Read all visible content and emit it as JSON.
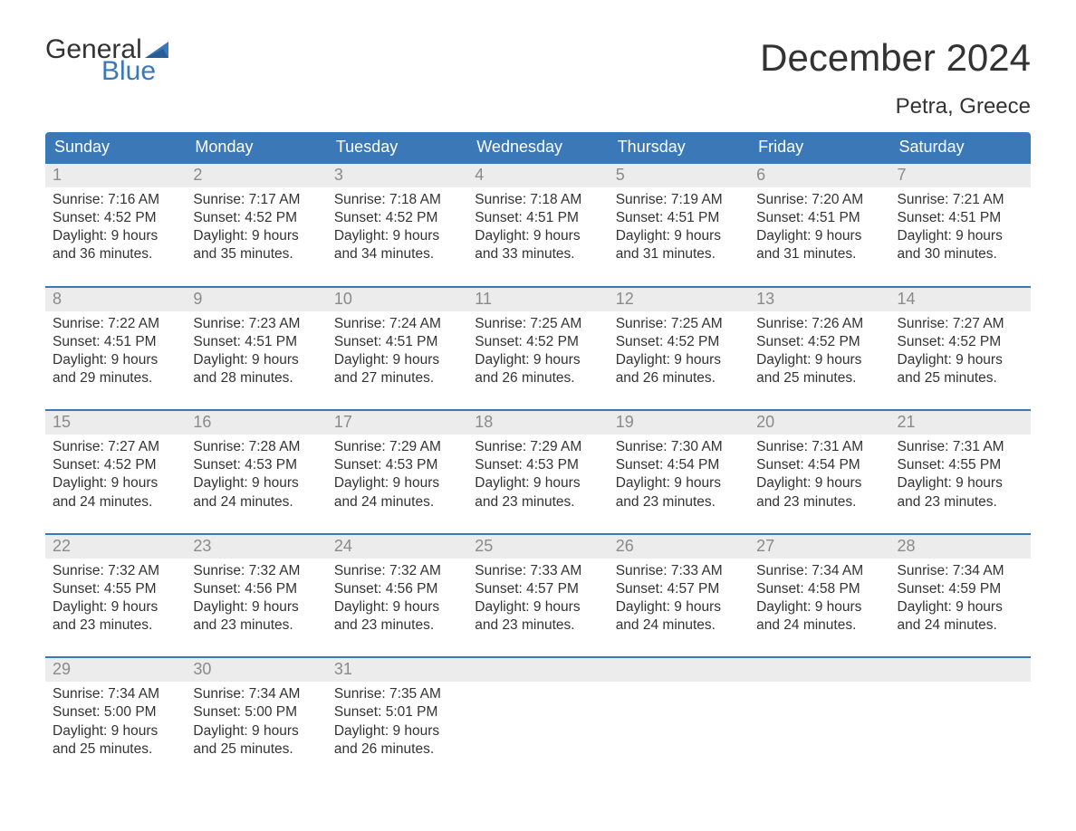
{
  "brand": {
    "word1": "General",
    "word2": "Blue",
    "flag_color": "#3b78b8"
  },
  "title": "December 2024",
  "subtitle": "Petra, Greece",
  "colors": {
    "header_bg": "#3b78b8",
    "header_text": "#ffffff",
    "week_border": "#3b78b8",
    "daynum_bg": "#ececec",
    "daynum_text": "#8a8a8a",
    "body_text": "#333333",
    "page_bg": "#ffffff"
  },
  "font": {
    "family": "Arial",
    "title_size": 42,
    "subtitle_size": 24,
    "weekday_size": 18,
    "daynum_size": 18,
    "body_size": 15.5
  },
  "weekdays": [
    "Sunday",
    "Monday",
    "Tuesday",
    "Wednesday",
    "Thursday",
    "Friday",
    "Saturday"
  ],
  "weeks": [
    [
      {
        "n": "1",
        "sunrise": "Sunrise: 7:16 AM",
        "sunset": "Sunset: 4:52 PM",
        "d1": "Daylight: 9 hours",
        "d2": "and 36 minutes."
      },
      {
        "n": "2",
        "sunrise": "Sunrise: 7:17 AM",
        "sunset": "Sunset: 4:52 PM",
        "d1": "Daylight: 9 hours",
        "d2": "and 35 minutes."
      },
      {
        "n": "3",
        "sunrise": "Sunrise: 7:18 AM",
        "sunset": "Sunset: 4:52 PM",
        "d1": "Daylight: 9 hours",
        "d2": "and 34 minutes."
      },
      {
        "n": "4",
        "sunrise": "Sunrise: 7:18 AM",
        "sunset": "Sunset: 4:51 PM",
        "d1": "Daylight: 9 hours",
        "d2": "and 33 minutes."
      },
      {
        "n": "5",
        "sunrise": "Sunrise: 7:19 AM",
        "sunset": "Sunset: 4:51 PM",
        "d1": "Daylight: 9 hours",
        "d2": "and 31 minutes."
      },
      {
        "n": "6",
        "sunrise": "Sunrise: 7:20 AM",
        "sunset": "Sunset: 4:51 PM",
        "d1": "Daylight: 9 hours",
        "d2": "and 31 minutes."
      },
      {
        "n": "7",
        "sunrise": "Sunrise: 7:21 AM",
        "sunset": "Sunset: 4:51 PM",
        "d1": "Daylight: 9 hours",
        "d2": "and 30 minutes."
      }
    ],
    [
      {
        "n": "8",
        "sunrise": "Sunrise: 7:22 AM",
        "sunset": "Sunset: 4:51 PM",
        "d1": "Daylight: 9 hours",
        "d2": "and 29 minutes."
      },
      {
        "n": "9",
        "sunrise": "Sunrise: 7:23 AM",
        "sunset": "Sunset: 4:51 PM",
        "d1": "Daylight: 9 hours",
        "d2": "and 28 minutes."
      },
      {
        "n": "10",
        "sunrise": "Sunrise: 7:24 AM",
        "sunset": "Sunset: 4:51 PM",
        "d1": "Daylight: 9 hours",
        "d2": "and 27 minutes."
      },
      {
        "n": "11",
        "sunrise": "Sunrise: 7:25 AM",
        "sunset": "Sunset: 4:52 PM",
        "d1": "Daylight: 9 hours",
        "d2": "and 26 minutes."
      },
      {
        "n": "12",
        "sunrise": "Sunrise: 7:25 AM",
        "sunset": "Sunset: 4:52 PM",
        "d1": "Daylight: 9 hours",
        "d2": "and 26 minutes."
      },
      {
        "n": "13",
        "sunrise": "Sunrise: 7:26 AM",
        "sunset": "Sunset: 4:52 PM",
        "d1": "Daylight: 9 hours",
        "d2": "and 25 minutes."
      },
      {
        "n": "14",
        "sunrise": "Sunrise: 7:27 AM",
        "sunset": "Sunset: 4:52 PM",
        "d1": "Daylight: 9 hours",
        "d2": "and 25 minutes."
      }
    ],
    [
      {
        "n": "15",
        "sunrise": "Sunrise: 7:27 AM",
        "sunset": "Sunset: 4:52 PM",
        "d1": "Daylight: 9 hours",
        "d2": "and 24 minutes."
      },
      {
        "n": "16",
        "sunrise": "Sunrise: 7:28 AM",
        "sunset": "Sunset: 4:53 PM",
        "d1": "Daylight: 9 hours",
        "d2": "and 24 minutes."
      },
      {
        "n": "17",
        "sunrise": "Sunrise: 7:29 AM",
        "sunset": "Sunset: 4:53 PM",
        "d1": "Daylight: 9 hours",
        "d2": "and 24 minutes."
      },
      {
        "n": "18",
        "sunrise": "Sunrise: 7:29 AM",
        "sunset": "Sunset: 4:53 PM",
        "d1": "Daylight: 9 hours",
        "d2": "and 23 minutes."
      },
      {
        "n": "19",
        "sunrise": "Sunrise: 7:30 AM",
        "sunset": "Sunset: 4:54 PM",
        "d1": "Daylight: 9 hours",
        "d2": "and 23 minutes."
      },
      {
        "n": "20",
        "sunrise": "Sunrise: 7:31 AM",
        "sunset": "Sunset: 4:54 PM",
        "d1": "Daylight: 9 hours",
        "d2": "and 23 minutes."
      },
      {
        "n": "21",
        "sunrise": "Sunrise: 7:31 AM",
        "sunset": "Sunset: 4:55 PM",
        "d1": "Daylight: 9 hours",
        "d2": "and 23 minutes."
      }
    ],
    [
      {
        "n": "22",
        "sunrise": "Sunrise: 7:32 AM",
        "sunset": "Sunset: 4:55 PM",
        "d1": "Daylight: 9 hours",
        "d2": "and 23 minutes."
      },
      {
        "n": "23",
        "sunrise": "Sunrise: 7:32 AM",
        "sunset": "Sunset: 4:56 PM",
        "d1": "Daylight: 9 hours",
        "d2": "and 23 minutes."
      },
      {
        "n": "24",
        "sunrise": "Sunrise: 7:32 AM",
        "sunset": "Sunset: 4:56 PM",
        "d1": "Daylight: 9 hours",
        "d2": "and 23 minutes."
      },
      {
        "n": "25",
        "sunrise": "Sunrise: 7:33 AM",
        "sunset": "Sunset: 4:57 PM",
        "d1": "Daylight: 9 hours",
        "d2": "and 23 minutes."
      },
      {
        "n": "26",
        "sunrise": "Sunrise: 7:33 AM",
        "sunset": "Sunset: 4:57 PM",
        "d1": "Daylight: 9 hours",
        "d2": "and 24 minutes."
      },
      {
        "n": "27",
        "sunrise": "Sunrise: 7:34 AM",
        "sunset": "Sunset: 4:58 PM",
        "d1": "Daylight: 9 hours",
        "d2": "and 24 minutes."
      },
      {
        "n": "28",
        "sunrise": "Sunrise: 7:34 AM",
        "sunset": "Sunset: 4:59 PM",
        "d1": "Daylight: 9 hours",
        "d2": "and 24 minutes."
      }
    ],
    [
      {
        "n": "29",
        "sunrise": "Sunrise: 7:34 AM",
        "sunset": "Sunset: 5:00 PM",
        "d1": "Daylight: 9 hours",
        "d2": "and 25 minutes."
      },
      {
        "n": "30",
        "sunrise": "Sunrise: 7:34 AM",
        "sunset": "Sunset: 5:00 PM",
        "d1": "Daylight: 9 hours",
        "d2": "and 25 minutes."
      },
      {
        "n": "31",
        "sunrise": "Sunrise: 7:35 AM",
        "sunset": "Sunset: 5:01 PM",
        "d1": "Daylight: 9 hours",
        "d2": "and 26 minutes."
      },
      {
        "empty": true
      },
      {
        "empty": true
      },
      {
        "empty": true
      },
      {
        "empty": true
      }
    ]
  ]
}
